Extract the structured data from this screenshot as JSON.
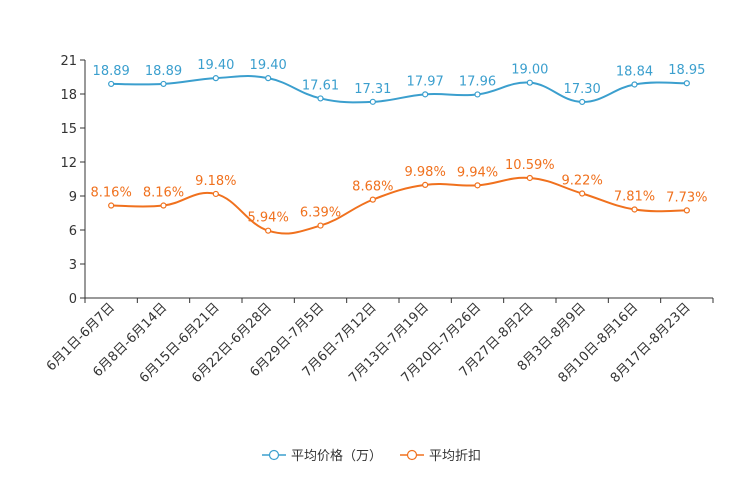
{
  "chart_data": {
    "type": "line",
    "title": "",
    "xlabel": "",
    "ylabel": "",
    "ylim": [
      0,
      21
    ],
    "yticks": [
      0,
      3,
      6,
      9,
      12,
      15,
      18,
      21
    ],
    "grid": false,
    "legend_position": "bottom-center",
    "categories": [
      "6月1日-6月7日",
      "6月8日-6月14日",
      "6月15日-6月21日",
      "6月22日-6月28日",
      "6月29日-7月5日",
      "7月6日-7月12日",
      "7月13日-7月19日",
      "7月20日-7月26日",
      "7月27日-8月2日",
      "8月3日-8月9日",
      "8月10日-8月16日",
      "8月17日-8月23日"
    ],
    "series": [
      {
        "name": "平均价格（万）",
        "color": "#3b9fce",
        "values": [
          18.89,
          18.89,
          19.4,
          19.4,
          17.61,
          17.31,
          17.97,
          17.96,
          19.0,
          17.3,
          18.84,
          18.95
        ],
        "labels": [
          "18.89",
          "18.89",
          "19.40",
          "19.40",
          "17.61",
          "17.31",
          "17.97",
          "17.96",
          "19.00",
          "17.30",
          "18.84",
          "18.95"
        ]
      },
      {
        "name": "平均折扣",
        "color": "#f0711e",
        "values": [
          8.16,
          8.16,
          9.18,
          5.94,
          6.39,
          8.68,
          9.98,
          9.94,
          10.59,
          9.22,
          7.81,
          7.73
        ],
        "labels": [
          "8.16%",
          "8.16%",
          "9.18%",
          "5.94%",
          "6.39%",
          "8.68%",
          "9.98%",
          "9.94%",
          "10.59%",
          "9.22%",
          "7.81%",
          "7.73%"
        ]
      }
    ]
  }
}
